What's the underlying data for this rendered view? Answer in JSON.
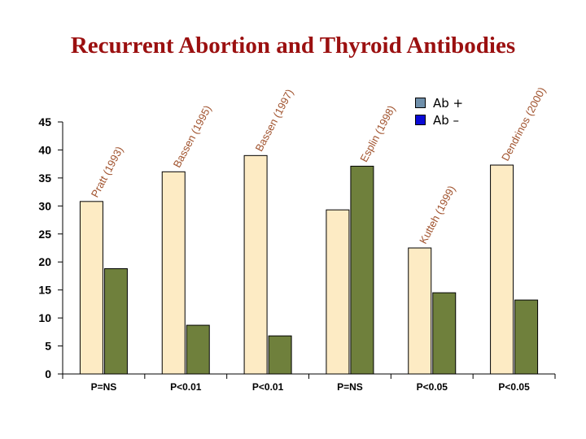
{
  "chart_data": {
    "type": "bar",
    "title": "Recurrent Abortion and Thyroid Antibodies",
    "studies": [
      "Pratt (1993)",
      "Bassen (1995)",
      "Bassen (1997)",
      "Esplin (1998)",
      "Kutteh (1999)",
      "Dendrinos (2000)"
    ],
    "categories": [
      "P=NS",
      "P<0.01",
      "P<0.01",
      "P=NS",
      "P<0.05",
      "P<0.05"
    ],
    "series": [
      {
        "name": "Ab +",
        "values": [
          30.8,
          36.1,
          39.0,
          29.3,
          22.5,
          37.3
        ]
      },
      {
        "name": "Ab –",
        "values": [
          18.8,
          8.7,
          6.8,
          37.1,
          14.5,
          13.2
        ]
      }
    ],
    "bar_colors": [
      "#fdebc4",
      "#6f803c"
    ],
    "legend_colors": [
      "#6f8faa",
      "#0a0ad6"
    ],
    "title_color": "#9b1010",
    "ylim": [
      0,
      45
    ],
    "yticks": [
      0,
      5,
      10,
      15,
      20,
      25,
      30,
      35,
      40,
      45
    ],
    "xlabel": "",
    "ylabel": ""
  }
}
